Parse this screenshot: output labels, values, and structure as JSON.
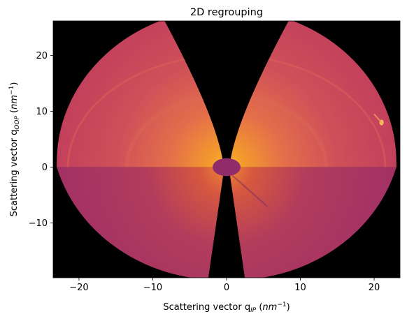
{
  "chart_data": {
    "type": "heatmap",
    "title": "2D regrouping",
    "xlabel": {
      "prefix": "Scattering vector q",
      "subscript": "IP",
      "open": " (",
      "unit_base": "nm",
      "unit_exp": "−1",
      "close": ")"
    },
    "ylabel": {
      "prefix": "Scattering vector q",
      "subscript": "OOP",
      "open": " (",
      "unit_base": "nm",
      "unit_exp": "−1",
      "close": ")"
    },
    "xlim": [
      -23.5,
      23.5
    ],
    "ylim": [
      -19.8,
      26.2
    ],
    "x_ticks": [
      -20,
      -10,
      0,
      10,
      20
    ],
    "y_ticks": [
      -10,
      0,
      10,
      20
    ],
    "x_tick_labels": [
      "−20",
      "−10",
      "0",
      "10",
      "20"
    ],
    "y_tick_labels": [
      "−10",
      "0",
      "10",
      "20"
    ],
    "colormap": "inferno",
    "colors": {
      "background": "#000000",
      "upper_fill": "#c13e5c",
      "lower_fill": "#a02f66",
      "glow": "#f1a030",
      "beamstop": "#912c6a",
      "ring": "#e0705a"
    },
    "detector_outline": {
      "center": [
        0,
        0
      ],
      "rx": 23.0,
      "ry": 27.5
    },
    "beamstop": {
      "center": [
        0,
        0.0
      ],
      "rx": 1.9,
      "ry": 1.6
    },
    "wedge_gaps": {
      "upper": {
        "inner_half_width": 0.4,
        "top_half_width": 8.5
      },
      "lower": {
        "inner_half_width": 0.3,
        "bottom_half_width": 2.5
      }
    },
    "rings": [
      {
        "rx": 21.5,
        "ry": 20.0
      },
      {
        "rx": 13.5,
        "ry": 12.8
      }
    ],
    "spot": {
      "x": 21.0,
      "y": 8.0
    }
  }
}
